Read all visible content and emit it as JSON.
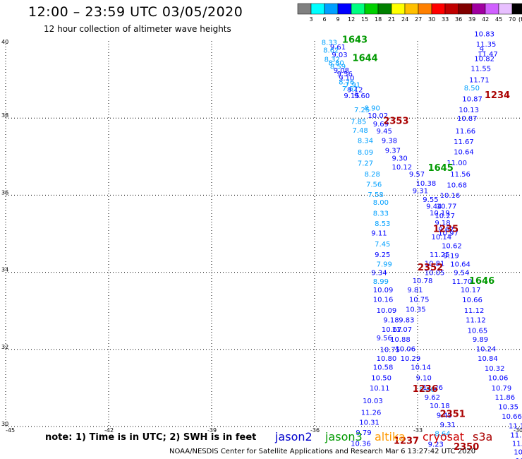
{
  "title": "12:00 – 23:59 UTC 03/05/2020",
  "subtitle": "12 hour collection of altimeter wave heights",
  "note": "note:  1) Time is in UTC;  2) SWH is in feet",
  "credit": "NOAA/NESDIS Center for Satellite Applications and Research    Mar  6 13:27:42 UTC 2020",
  "missions": [
    {
      "name": "jason2",
      "color": "#0000cc"
    },
    {
      "name": "jason3",
      "color": "#009900"
    },
    {
      "name": "altika",
      "color": "#ff9900"
    },
    {
      "name": "cryosat",
      "color": "#cc0000"
    },
    {
      "name": "s3a",
      "color": "#aa0000"
    }
  ],
  "legend": {
    "labels": [
      "3",
      "6",
      "9",
      "12",
      "15",
      "18",
      "21",
      "24",
      "27",
      "30",
      "33",
      "36",
      "39",
      "42",
      "45",
      "70",
      "(ft)"
    ],
    "colors": [
      "#808080",
      "#00ffff",
      "#00a0ff",
      "#0000ff",
      "#00ff80",
      "#00d000",
      "#008000",
      "#ffff00",
      "#ffc000",
      "#ff8000",
      "#ff0000",
      "#c00000",
      "#800000",
      "#a000a0",
      "#d060ff",
      "#e8c0ff",
      "#000000"
    ]
  },
  "chart_data": {
    "type": "scatter",
    "title": "12:00 – 23:59 UTC 03/05/2020",
    "subtitle": "12 hour collection of altimeter wave heights",
    "xlabel": "",
    "ylabel": "",
    "xlim": [
      -45,
      -30
    ],
    "ylim": [
      30,
      40
    ],
    "xticks": [
      "-45",
      "-42",
      "-39",
      "-36",
      "-33",
      "-30"
    ],
    "yticks": [
      "30",
      "32",
      "34",
      "36",
      "38",
      "40"
    ],
    "xtick_values": [
      -45,
      -42,
      -39,
      -36,
      -33,
      -30
    ],
    "ytick_values": [
      30,
      32,
      34,
      36,
      38,
      40
    ],
    "grid": true,
    "units": "ft",
    "points": [
      {
        "lon": -35.8,
        "lat": 39.9,
        "v": "8.33",
        "c": "#00a0ff"
      },
      {
        "lon": -35.55,
        "lat": 39.78,
        "v": "9.61",
        "c": "#0000ff"
      },
      {
        "lon": -35.75,
        "lat": 39.7,
        "v": "8.62",
        "c": "#00a0ff"
      },
      {
        "lon": -35.5,
        "lat": 39.58,
        "v": "9.03",
        "c": "#0000ff"
      },
      {
        "lon": -35.72,
        "lat": 39.46,
        "v": "8.32",
        "c": "#00a0ff"
      },
      {
        "lon": -35.6,
        "lat": 39.37,
        "v": "8.80",
        "c": "#00a0ff"
      },
      {
        "lon": -35.55,
        "lat": 39.28,
        "v": "8.59",
        "c": "#00a0ff"
      },
      {
        "lon": -35.45,
        "lat": 39.18,
        "v": "9.08",
        "c": "#0000ff"
      },
      {
        "lon": -35.35,
        "lat": 39.08,
        "v": "9.56",
        "c": "#0000ff"
      },
      {
        "lon": -35.3,
        "lat": 38.97,
        "v": "9.10",
        "c": "#0000ff"
      },
      {
        "lon": -35.3,
        "lat": 38.87,
        "v": "8.76",
        "c": "#00a0ff"
      },
      {
        "lon": -35.12,
        "lat": 38.8,
        "v": "7.91",
        "c": "#00a0ff"
      },
      {
        "lon": -35.2,
        "lat": 38.7,
        "v": "7.62",
        "c": "#00a0ff"
      },
      {
        "lon": -35.05,
        "lat": 38.67,
        "v": "9.12",
        "c": "#0000ff"
      },
      {
        "lon": -35.15,
        "lat": 38.52,
        "v": "9.15",
        "c": "#0000ff"
      },
      {
        "lon": -34.85,
        "lat": 38.52,
        "v": "9.60",
        "c": "#0000ff"
      },
      {
        "lon": -34.85,
        "lat": 38.15,
        "v": "7.25",
        "c": "#00a0ff"
      },
      {
        "lon": -34.55,
        "lat": 38.2,
        "v": "8.90",
        "c": "#00a0ff"
      },
      {
        "lon": -34.45,
        "lat": 38.0,
        "v": "10.02",
        "c": "#0000ff"
      },
      {
        "lon": -34.95,
        "lat": 37.85,
        "v": "7.85",
        "c": "#00a0ff"
      },
      {
        "lon": -34.3,
        "lat": 37.78,
        "v": "9.69",
        "c": "#0000ff"
      },
      {
        "lon": -34.9,
        "lat": 37.62,
        "v": "7.48",
        "c": "#00a0ff"
      },
      {
        "lon": -34.2,
        "lat": 37.6,
        "v": "9.45",
        "c": "#0000ff"
      },
      {
        "lon": -34.75,
        "lat": 37.35,
        "v": "8.34",
        "c": "#00a0ff"
      },
      {
        "lon": -34.05,
        "lat": 37.35,
        "v": "9.38",
        "c": "#0000ff"
      },
      {
        "lon": -34.75,
        "lat": 37.05,
        "v": "8.09",
        "c": "#00a0ff"
      },
      {
        "lon": -33.95,
        "lat": 37.1,
        "v": "9.37",
        "c": "#0000ff"
      },
      {
        "lon": -33.75,
        "lat": 36.9,
        "v": "9.30",
        "c": "#0000ff"
      },
      {
        "lon": -34.75,
        "lat": 36.77,
        "v": "7.27",
        "c": "#00a0ff"
      },
      {
        "lon": -33.75,
        "lat": 36.67,
        "v": "10.12",
        "c": "#0000ff"
      },
      {
        "lon": -34.55,
        "lat": 36.48,
        "v": "8.28",
        "c": "#00a0ff"
      },
      {
        "lon": -33.25,
        "lat": 36.48,
        "v": "9.57",
        "c": "#0000ff"
      },
      {
        "lon": -34.5,
        "lat": 36.22,
        "v": "7.56",
        "c": "#00a0ff"
      },
      {
        "lon": -33.05,
        "lat": 36.25,
        "v": "10.38",
        "c": "#0000ff"
      },
      {
        "lon": -33.15,
        "lat": 36.05,
        "v": "9.31",
        "c": "#0000ff"
      },
      {
        "lon": -34.45,
        "lat": 35.95,
        "v": "7.58",
        "c": "#00a0ff"
      },
      {
        "lon": -32.85,
        "lat": 35.82,
        "v": "9.55",
        "c": "#0000ff"
      },
      {
        "lon": -34.3,
        "lat": 35.75,
        "v": "8.00",
        "c": "#00a0ff"
      },
      {
        "lon": -32.75,
        "lat": 35.65,
        "v": "9.44",
        "c": "#0000ff"
      },
      {
        "lon": -34.3,
        "lat": 35.47,
        "v": "8.33",
        "c": "#00a0ff"
      },
      {
        "lon": -32.65,
        "lat": 35.48,
        "v": "10.19",
        "c": "#0000ff"
      },
      {
        "lon": -34.25,
        "lat": 35.2,
        "v": "8.53",
        "c": "#00a0ff"
      },
      {
        "lon": -32.5,
        "lat": 35.22,
        "v": "9.18",
        "c": "#0000ff"
      },
      {
        "lon": -34.35,
        "lat": 34.95,
        "v": "9.11",
        "c": "#0000ff"
      },
      {
        "lon": -32.4,
        "lat": 35.05,
        "v": "9.67",
        "c": "#0000ff"
      },
      {
        "lon": -34.25,
        "lat": 34.67,
        "v": "7.45",
        "c": "#00a0ff"
      },
      {
        "lon": -32.6,
        "lat": 34.85,
        "v": "10.14",
        "c": "#0000ff"
      },
      {
        "lon": -34.25,
        "lat": 34.4,
        "v": "9.25",
        "c": "#0000ff"
      },
      {
        "lon": -32.65,
        "lat": 34.4,
        "v": "11.25",
        "c": "#0000ff"
      },
      {
        "lon": -34.2,
        "lat": 34.15,
        "v": "7.99",
        "c": "#00a0ff"
      },
      {
        "lon": -32.8,
        "lat": 34.17,
        "v": "10.81",
        "c": "#0000ff"
      },
      {
        "lon": -34.35,
        "lat": 33.93,
        "v": "9.34",
        "c": "#0000ff"
      },
      {
        "lon": -32.8,
        "lat": 33.93,
        "v": "10.05",
        "c": "#0000ff"
      },
      {
        "lon": -34.3,
        "lat": 33.7,
        "v": "8.99",
        "c": "#00a0ff"
      },
      {
        "lon": -33.15,
        "lat": 33.72,
        "v": "10.78",
        "c": "#0000ff"
      },
      {
        "lon": -34.3,
        "lat": 33.48,
        "v": "10.09",
        "c": "#0000ff"
      },
      {
        "lon": -33.3,
        "lat": 33.48,
        "v": "9.81",
        "c": "#0000ff"
      },
      {
        "lon": -34.3,
        "lat": 33.23,
        "v": "10.16",
        "c": "#0000ff"
      },
      {
        "lon": -33.25,
        "lat": 33.23,
        "v": "10.75",
        "c": "#0000ff"
      },
      {
        "lon": -34.2,
        "lat": 32.95,
        "v": "10.09",
        "c": "#0000ff"
      },
      {
        "lon": -33.35,
        "lat": 32.98,
        "v": "10.35",
        "c": "#0000ff"
      },
      {
        "lon": -34.0,
        "lat": 32.7,
        "v": "9.18",
        "c": "#0000ff"
      },
      {
        "lon": -33.55,
        "lat": 32.7,
        "v": "9.83",
        "c": "#0000ff"
      },
      {
        "lon": -34.05,
        "lat": 32.45,
        "v": "10.67",
        "c": "#0000ff"
      },
      {
        "lon": -33.75,
        "lat": 32.45,
        "v": "11.07",
        "c": "#0000ff"
      },
      {
        "lon": -34.2,
        "lat": 32.23,
        "v": "9.56",
        "c": "#0000ff"
      },
      {
        "lon": -33.8,
        "lat": 32.2,
        "v": "10.88",
        "c": "#0000ff"
      },
      {
        "lon": -34.1,
        "lat": 31.93,
        "v": "10.75",
        "c": "#0000ff"
      },
      {
        "lon": -33.65,
        "lat": 31.95,
        "v": "10.06",
        "c": "#0000ff"
      },
      {
        "lon": -34.2,
        "lat": 31.7,
        "v": "10.80",
        "c": "#0000ff"
      },
      {
        "lon": -33.5,
        "lat": 31.7,
        "v": "10.29",
        "c": "#0000ff"
      },
      {
        "lon": -34.3,
        "lat": 31.47,
        "v": "10.58",
        "c": "#0000ff"
      },
      {
        "lon": -33.2,
        "lat": 31.47,
        "v": "10.14",
        "c": "#0000ff"
      },
      {
        "lon": -34.35,
        "lat": 31.2,
        "v": "10.50",
        "c": "#0000ff"
      },
      {
        "lon": -33.05,
        "lat": 31.2,
        "v": "9.10",
        "c": "#0000ff"
      },
      {
        "lon": -34.4,
        "lat": 30.93,
        "v": "10.11",
        "c": "#0000ff"
      },
      {
        "lon": -32.85,
        "lat": 30.95,
        "v": "11.26",
        "c": "#0000ff"
      },
      {
        "lon": -32.95,
        "lat": 30.9,
        "v": "8.80",
        "c": "#00a0ff"
      },
      {
        "lon": -32.8,
        "lat": 30.7,
        "v": "9.62",
        "c": "#0000ff"
      },
      {
        "lon": -34.6,
        "lat": 30.6,
        "v": "10.03",
        "c": "#0000ff"
      },
      {
        "lon": -32.65,
        "lat": 30.48,
        "v": "10.18",
        "c": "#0000ff"
      },
      {
        "lon": -34.65,
        "lat": 30.3,
        "v": "11.26",
        "c": "#0000ff"
      },
      {
        "lon": -32.45,
        "lat": 30.23,
        "v": "9.49",
        "c": "#0000ff"
      },
      {
        "lon": -34.7,
        "lat": 30.05,
        "v": "10.31",
        "c": "#0000ff"
      },
      {
        "lon": -32.35,
        "lat": 29.98,
        "v": "9.31",
        "c": "#0000ff"
      },
      {
        "lon": -34.8,
        "lat": 29.78,
        "v": "9.79",
        "c": "#0000ff"
      },
      {
        "lon": -32.5,
        "lat": 29.75,
        "v": "8.64",
        "c": "#00a0ff"
      },
      {
        "lon": -34.95,
        "lat": 29.5,
        "v": "10.36",
        "c": "#0000ff"
      },
      {
        "lon": -32.7,
        "lat": 29.48,
        "v": "9.23",
        "c": "#0000ff"
      },
      {
        "lon": -31.35,
        "lat": 40.12,
        "v": "10.83",
        "c": "#0000ff"
      },
      {
        "lon": -31.3,
        "lat": 39.85,
        "v": "11.35",
        "c": "#0000ff"
      },
      {
        "lon": -31.2,
        "lat": 39.72,
        "v": "9.",
        "c": "#0000ff"
      },
      {
        "lon": -31.25,
        "lat": 39.6,
        "v": "11.47",
        "c": "#0000ff"
      },
      {
        "lon": -31.35,
        "lat": 39.48,
        "v": "10.82",
        "c": "#0000ff"
      },
      {
        "lon": -31.45,
        "lat": 39.22,
        "v": "11.55",
        "c": "#0000ff"
      },
      {
        "lon": -31.5,
        "lat": 38.93,
        "v": "11.71",
        "c": "#0000ff"
      },
      {
        "lon": -31.65,
        "lat": 38.72,
        "v": "8.50",
        "c": "#00a0ff"
      },
      {
        "lon": -31.7,
        "lat": 38.43,
        "v": "10.87",
        "c": "#0000ff"
      },
      {
        "lon": -31.8,
        "lat": 38.15,
        "v": "10.13",
        "c": "#0000ff"
      },
      {
        "lon": -31.85,
        "lat": 37.93,
        "v": "10.87",
        "c": "#0000ff"
      },
      {
        "lon": -31.9,
        "lat": 37.6,
        "v": "11.66",
        "c": "#0000ff"
      },
      {
        "lon": -31.95,
        "lat": 37.33,
        "v": "11.67",
        "c": "#0000ff"
      },
      {
        "lon": -31.95,
        "lat": 37.06,
        "v": "10.64",
        "c": "#0000ff"
      },
      {
        "lon": -32.15,
        "lat": 36.78,
        "v": "11.00",
        "c": "#0000ff"
      },
      {
        "lon": -32.05,
        "lat": 36.48,
        "v": "11.56",
        "c": "#0000ff"
      },
      {
        "lon": -32.15,
        "lat": 36.2,
        "v": "10.68",
        "c": "#0000ff"
      },
      {
        "lon": -32.35,
        "lat": 35.93,
        "v": "10.16",
        "c": "#0000ff"
      },
      {
        "lon": -32.45,
        "lat": 35.65,
        "v": "10.77",
        "c": "#0000ff"
      },
      {
        "lon": -32.5,
        "lat": 35.4,
        "v": "10.27",
        "c": "#0000ff"
      },
      {
        "lon": -32.4,
        "lat": 34.95,
        "v": "10.97",
        "c": "#0000ff"
      },
      {
        "lon": -32.3,
        "lat": 34.62,
        "v": "10.62",
        "c": "#0000ff"
      },
      {
        "lon": -32.25,
        "lat": 34.37,
        "v": "9.19",
        "c": "#0000ff"
      },
      {
        "lon": -32.05,
        "lat": 34.15,
        "v": "10.64",
        "c": "#0000ff"
      },
      {
        "lon": -31.95,
        "lat": 33.93,
        "v": "9.54",
        "c": "#0000ff"
      },
      {
        "lon": -32.0,
        "lat": 33.7,
        "v": "11.70",
        "c": "#0000ff"
      },
      {
        "lon": -31.75,
        "lat": 33.48,
        "v": "10.17",
        "c": "#0000ff"
      },
      {
        "lon": -31.7,
        "lat": 33.22,
        "v": "10.66",
        "c": "#0000ff"
      },
      {
        "lon": -31.65,
        "lat": 32.95,
        "v": "11.12",
        "c": "#0000ff"
      },
      {
        "lon": -31.6,
        "lat": 32.7,
        "v": "11.12",
        "c": "#0000ff"
      },
      {
        "lon": -31.55,
        "lat": 32.43,
        "v": "10.65",
        "c": "#0000ff"
      },
      {
        "lon": -31.4,
        "lat": 32.2,
        "v": "9.89",
        "c": "#0000ff"
      },
      {
        "lon": -31.3,
        "lat": 31.95,
        "v": "10.24",
        "c": "#0000ff"
      },
      {
        "lon": -31.25,
        "lat": 31.7,
        "v": "10.84",
        "c": "#0000ff"
      },
      {
        "lon": -31.05,
        "lat": 31.45,
        "v": "10.32",
        "c": "#0000ff"
      },
      {
        "lon": -30.95,
        "lat": 31.2,
        "v": "10.06",
        "c": "#0000ff"
      },
      {
        "lon": -30.85,
        "lat": 30.93,
        "v": "10.79",
        "c": "#0000ff"
      },
      {
        "lon": -30.75,
        "lat": 30.7,
        "v": "11.86",
        "c": "#0000ff"
      },
      {
        "lon": -30.65,
        "lat": 30.45,
        "v": "10.35",
        "c": "#0000ff"
      },
      {
        "lon": -30.55,
        "lat": 30.2,
        "v": "10.66",
        "c": "#0000ff"
      },
      {
        "lon": -30.35,
        "lat": 29.95,
        "v": "11.14",
        "c": "#0000ff"
      },
      {
        "lon": -30.3,
        "lat": 29.72,
        "v": "11.14",
        "c": "#0000ff"
      },
      {
        "lon": -30.25,
        "lat": 29.5,
        "v": "11.1",
        "c": "#0000ff"
      },
      {
        "lon": -30.2,
        "lat": 29.28,
        "v": "10.",
        "c": "#0000ff"
      },
      {
        "lon": -30.15,
        "lat": 29.05,
        "v": "10.",
        "c": "#0000ff"
      }
    ],
    "times": [
      {
        "lon": -35.2,
        "lat": 39.95,
        "t": "1643",
        "c": "#009900"
      },
      {
        "lon": -34.9,
        "lat": 39.48,
        "t": "1644",
        "c": "#009900"
      },
      {
        "lon": -34.0,
        "lat": 37.85,
        "t": "2353",
        "c": "#aa0000"
      },
      {
        "lon": -32.7,
        "lat": 36.63,
        "t": "1645",
        "c": "#009900"
      },
      {
        "lon": -31.05,
        "lat": 38.52,
        "t": "1234",
        "c": "#aa0000"
      },
      {
        "lon": -32.55,
        "lat": 35.05,
        "t": "1235",
        "c": "#aa0000"
      },
      {
        "lon": -33.0,
        "lat": 34.05,
        "t": "2352",
        "c": "#aa0000"
      },
      {
        "lon": -31.5,
        "lat": 33.7,
        "t": "1646",
        "c": "#009900"
      },
      {
        "lon": -33.15,
        "lat": 30.9,
        "t": "1236",
        "c": "#aa0000"
      },
      {
        "lon": -32.35,
        "lat": 30.25,
        "t": "2351",
        "c": "#aa0000"
      },
      {
        "lon": -33.7,
        "lat": 29.55,
        "t": "1237",
        "c": "#aa0000"
      },
      {
        "lon": -31.95,
        "lat": 29.4,
        "t": "2350",
        "c": "#aa0000"
      }
    ]
  }
}
